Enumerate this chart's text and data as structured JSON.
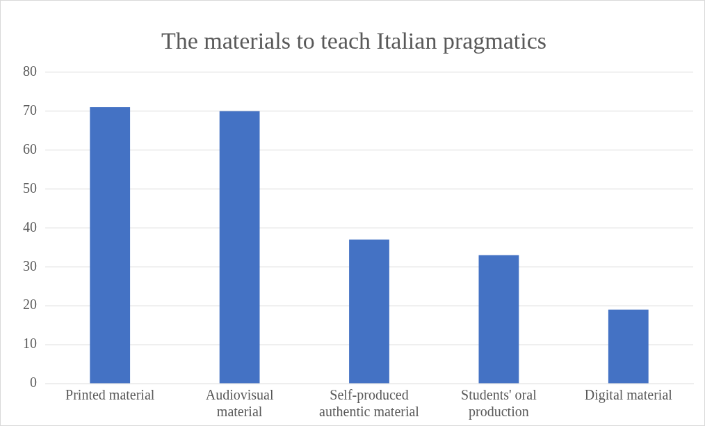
{
  "chart_data": {
    "type": "bar",
    "title": "The materials to teach Italian pragmatics",
    "categories": [
      "Printed material",
      "Audiovisual material",
      "Self-produced authentic material",
      "Students' oral production",
      "Digital material"
    ],
    "values": [
      71,
      70,
      37,
      33,
      19
    ],
    "color": "#4472c4",
    "ylim": [
      0,
      80
    ],
    "yticks": [
      0,
      10,
      20,
      30,
      40,
      50,
      60,
      70,
      80
    ],
    "grid": "y"
  }
}
